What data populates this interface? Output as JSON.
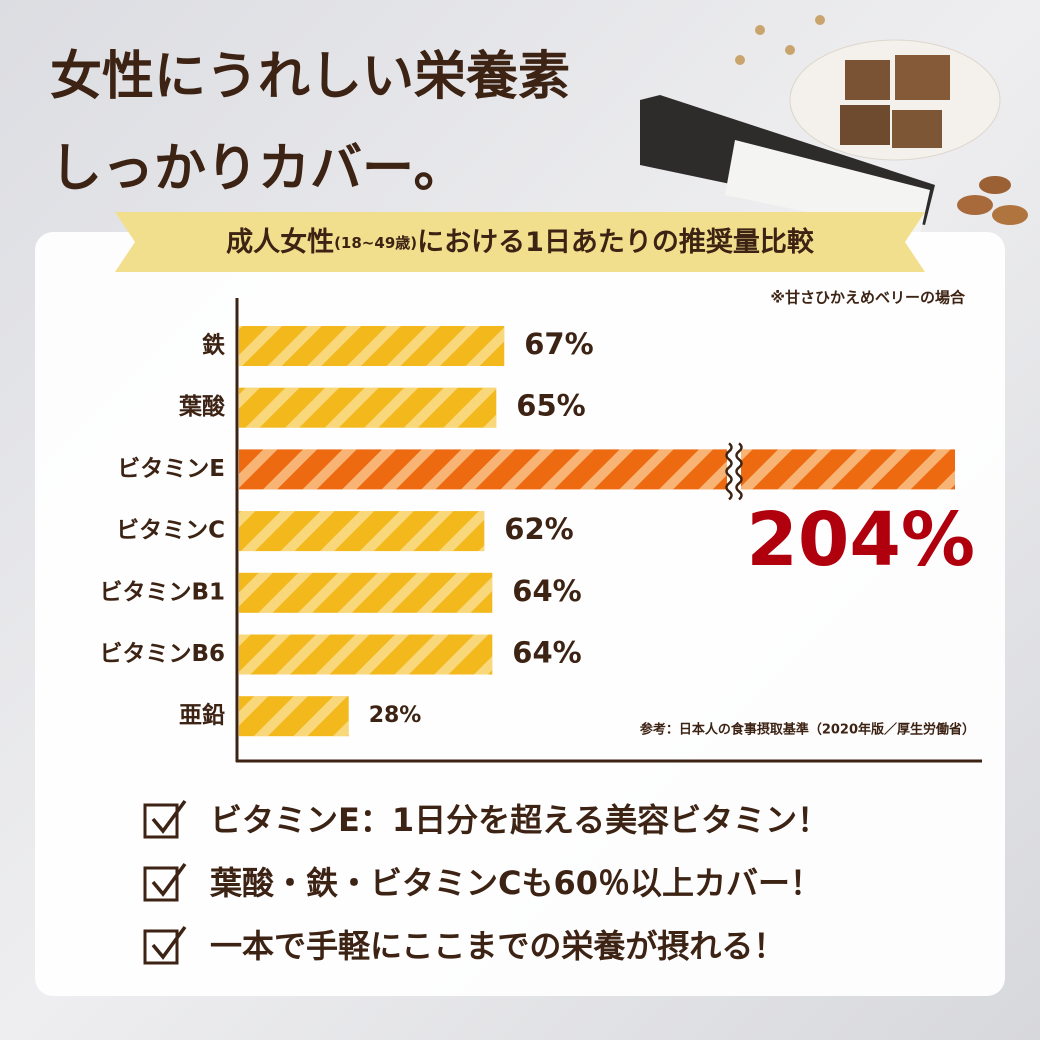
{
  "chart_data": {
    "type": "bar",
    "orientation": "horizontal",
    "title": [
      "女性にうれしい栄養素",
      "しっかりカバー。"
    ],
    "subtitle": [
      "成人女性",
      "(18~49歳)",
      "における1日あたりの推奨量比較"
    ],
    "note": "※甘さひかえめベリーの場合",
    "source": "参考：日本人の食事摂取基準（2020年版／厚生労働省）",
    "categories": [
      "鉄",
      "葉酸",
      "ビタミンE",
      "ビタミンC",
      "ビタミンB1",
      "ビタミンB6",
      "亜鉛"
    ],
    "values": [
      67,
      65,
      204,
      62,
      64,
      64,
      28
    ],
    "value_labels": [
      "67%",
      "65%",
      "204%",
      "62%",
      "64%",
      "64%",
      "28%"
    ],
    "colors": [
      "#f2b81c",
      "#f2b81c",
      "#ee6a10",
      "#f2b81c",
      "#f2b81c",
      "#f2b81c",
      "#f2b81c"
    ],
    "highlight_label_color": "#b0000e",
    "xlim": [
      0,
      180
    ]
  },
  "checklist": [
    "ビタミンE：1日分を超える美容ビタミン！",
    "葉酸・鉄・ビタミンCも60％以上カバー！",
    "一本で手軽にここまでの栄養が摂れる！"
  ]
}
